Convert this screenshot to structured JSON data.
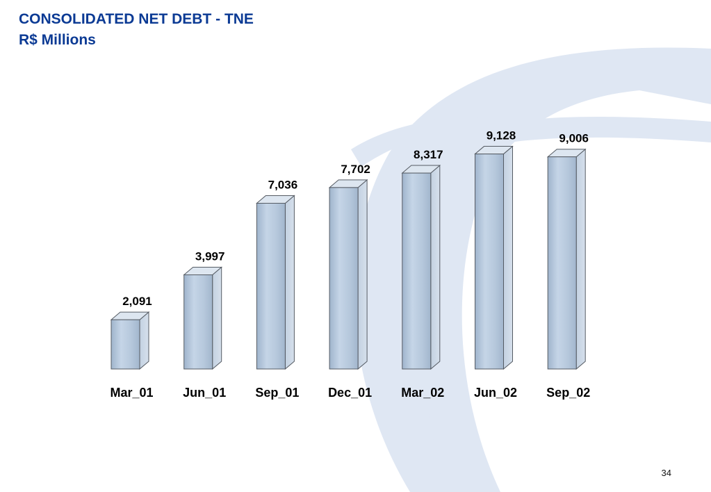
{
  "slide": {
    "title": "CONSOLIDATED NET DEBT - TNE",
    "subtitle": "R$ Millions",
    "page_number": "34",
    "title_color": "#0b3a94",
    "watermark_color": "#dfe7f3"
  },
  "chart_data": {
    "type": "bar",
    "title": "CONSOLIDATED NET DEBT - TNE",
    "subtitle": "R$ Millions",
    "categories": [
      "Mar_01",
      "Jun_01",
      "Sep_01",
      "Dec_01",
      "Mar_02",
      "Jun_02",
      "Sep_02"
    ],
    "values": [
      2091,
      3997,
      7036,
      7702,
      8317,
      9128,
      9006
    ],
    "value_labels": [
      "2,091",
      "3,997",
      "7,036",
      "7,702",
      "8,317",
      "9,128",
      "9,006"
    ],
    "xlabel": "",
    "ylabel": "",
    "ylim": [
      0,
      10000
    ],
    "grid": false,
    "legend": "none",
    "style": "3d-cylinder",
    "colors": {
      "bar_front": "#b4c8de",
      "bar_side": "#c9d6e6",
      "bar_top": "#dde6f0",
      "bar_edge": "#555b63"
    }
  }
}
